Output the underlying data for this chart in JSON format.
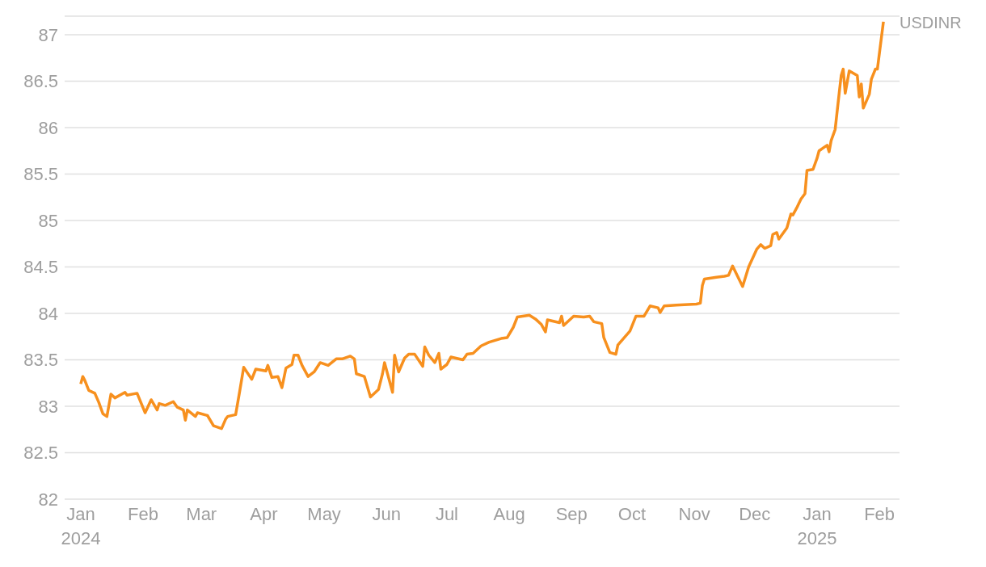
{
  "chart_data": {
    "type": "line",
    "xlim": [
      "2023-12-24",
      "2025-02-11"
    ],
    "ylim": [
      82,
      87.2
    ],
    "yticks": [
      82,
      82.5,
      83,
      83.5,
      84,
      84.5,
      85,
      85.5,
      86,
      86.5,
      87
    ],
    "xticks": [
      {
        "value": "2024-01-01",
        "label": "Jan\n2024"
      },
      {
        "value": "2024-02-01",
        "label": "Feb"
      },
      {
        "value": "2024-03-01",
        "label": "Mar"
      },
      {
        "value": "2024-04-01",
        "label": "Apr"
      },
      {
        "value": "2024-05-01",
        "label": "May"
      },
      {
        "value": "2024-06-01",
        "label": "Jun"
      },
      {
        "value": "2024-07-01",
        "label": "Jul"
      },
      {
        "value": "2024-08-01",
        "label": "Aug"
      },
      {
        "value": "2024-09-01",
        "label": "Sep"
      },
      {
        "value": "2024-10-01",
        "label": "Oct"
      },
      {
        "value": "2024-11-01",
        "label": "Nov"
      },
      {
        "value": "2024-12-01",
        "label": "Dec"
      },
      {
        "value": "2025-01-01",
        "label": "Jan\n2025"
      },
      {
        "value": "2025-02-01",
        "label": "Feb"
      }
    ],
    "grid": "y",
    "legend": false,
    "marker": "none",
    "line_style": "solid",
    "series": [
      {
        "name": "USDINR",
        "color": "#f7901e",
        "x": [
          "2024-01-01",
          "2024-01-02",
          "2024-01-03",
          "2024-01-05",
          "2024-01-08",
          "2024-01-10",
          "2024-01-12",
          "2024-01-14",
          "2024-01-16",
          "2024-01-18",
          "2024-01-23",
          "2024-01-24",
          "2024-01-29",
          "2024-02-02",
          "2024-02-05",
          "2024-02-08",
          "2024-02-09",
          "2024-02-12",
          "2024-02-16",
          "2024-02-18",
          "2024-02-21",
          "2024-02-22",
          "2024-02-23",
          "2024-02-27",
          "2024-02-28",
          "2024-03-04",
          "2024-03-07",
          "2024-03-11",
          "2024-03-13",
          "2024-03-14",
          "2024-03-18",
          "2024-03-20",
          "2024-03-22",
          "2024-03-26",
          "2024-03-28",
          "2024-04-02",
          "2024-04-03",
          "2024-04-05",
          "2024-04-08",
          "2024-04-10",
          "2024-04-12",
          "2024-04-15",
          "2024-04-16",
          "2024-04-18",
          "2024-04-20",
          "2024-04-23",
          "2024-04-26",
          "2024-04-29",
          "2024-05-03",
          "2024-05-07",
          "2024-05-10",
          "2024-05-14",
          "2024-05-16",
          "2024-05-17",
          "2024-05-21",
          "2024-05-24",
          "2024-05-28",
          "2024-05-30",
          "2024-05-31",
          "2024-06-04",
          "2024-06-05",
          "2024-06-07",
          "2024-06-10",
          "2024-06-12",
          "2024-06-15",
          "2024-06-19",
          "2024-06-20",
          "2024-06-22",
          "2024-06-25",
          "2024-06-27",
          "2024-06-28",
          "2024-07-01",
          "2024-07-03",
          "2024-07-09",
          "2024-07-11",
          "2024-07-14",
          "2024-07-18",
          "2024-07-22",
          "2024-07-28",
          "2024-07-31",
          "2024-08-03",
          "2024-08-05",
          "2024-08-11",
          "2024-08-14",
          "2024-08-17",
          "2024-08-19",
          "2024-08-20",
          "2024-08-26",
          "2024-08-27",
          "2024-08-28",
          "2024-09-02",
          "2024-09-07",
          "2024-09-10",
          "2024-09-12",
          "2024-09-16",
          "2024-09-17",
          "2024-09-20",
          "2024-09-23",
          "2024-09-24",
          "2024-09-30",
          "2024-10-03",
          "2024-10-07",
          "2024-10-10",
          "2024-10-14",
          "2024-10-15",
          "2024-10-17",
          "2024-10-23",
          "2024-11-02",
          "2024-11-04",
          "2024-11-05",
          "2024-11-06",
          "2024-11-12",
          "2024-11-16",
          "2024-11-18",
          "2024-11-20",
          "2024-11-25",
          "2024-11-28",
          "2024-12-02",
          "2024-12-04",
          "2024-12-06",
          "2024-12-09",
          "2024-12-10",
          "2024-12-12",
          "2024-12-13",
          "2024-12-17",
          "2024-12-19",
          "2024-12-20",
          "2024-12-22",
          "2024-12-24",
          "2024-12-26",
          "2024-12-27",
          "2024-12-30",
          "2025-01-01",
          "2025-01-02",
          "2025-01-06",
          "2025-01-07",
          "2025-01-08",
          "2025-01-10",
          "2025-01-12",
          "2025-01-13",
          "2025-01-14",
          "2025-01-15",
          "2025-01-17",
          "2025-01-21",
          "2025-01-22",
          "2025-01-23",
          "2025-01-24",
          "2025-01-27",
          "2025-01-28",
          "2025-01-30",
          "2025-01-31",
          "2025-02-03"
        ],
        "values": [
          83.24,
          83.32,
          83.28,
          83.17,
          83.14,
          83.04,
          82.92,
          82.89,
          83.13,
          83.09,
          83.15,
          83.12,
          83.14,
          82.93,
          83.07,
          82.96,
          83.03,
          83.01,
          83.05,
          82.99,
          82.96,
          82.85,
          82.96,
          82.89,
          82.93,
          82.9,
          82.79,
          82.76,
          82.86,
          82.89,
          82.91,
          83.16,
          83.42,
          83.29,
          83.4,
          83.38,
          83.44,
          83.31,
          83.32,
          83.2,
          83.41,
          83.45,
          83.55,
          83.55,
          83.44,
          83.32,
          83.37,
          83.47,
          83.44,
          83.51,
          83.51,
          83.54,
          83.51,
          83.35,
          83.32,
          83.1,
          83.18,
          83.35,
          83.47,
          83.15,
          83.55,
          83.37,
          83.52,
          83.56,
          83.56,
          83.43,
          83.64,
          83.55,
          83.47,
          83.57,
          83.4,
          83.45,
          83.53,
          83.5,
          83.56,
          83.57,
          83.65,
          83.69,
          83.73,
          83.74,
          83.85,
          83.96,
          83.98,
          83.94,
          83.88,
          83.8,
          83.93,
          83.9,
          83.97,
          83.87,
          83.97,
          83.96,
          83.97,
          83.91,
          83.89,
          83.74,
          83.58,
          83.56,
          83.66,
          83.81,
          83.97,
          83.97,
          84.08,
          84.06,
          84.01,
          84.08,
          84.09,
          84.1,
          84.11,
          84.3,
          84.37,
          84.39,
          84.4,
          84.41,
          84.51,
          84.29,
          84.5,
          84.69,
          84.74,
          84.7,
          84.73,
          84.85,
          84.87,
          84.8,
          84.92,
          85.07,
          85.06,
          85.14,
          85.23,
          85.29,
          85.54,
          85.55,
          85.67,
          85.75,
          85.81,
          85.74,
          85.86,
          85.98,
          86.37,
          86.56,
          86.63,
          86.37,
          86.61,
          86.56,
          86.33,
          86.47,
          86.21,
          86.36,
          86.52,
          86.63,
          86.63,
          87.14
        ]
      }
    ]
  }
}
